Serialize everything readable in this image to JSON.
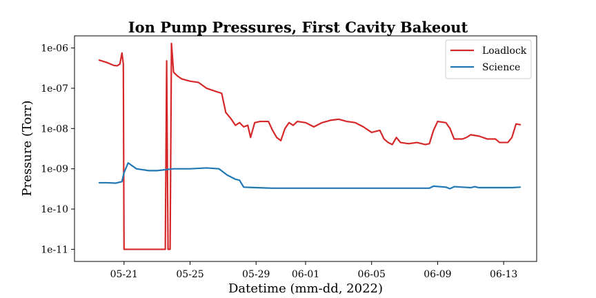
{
  "chart_data": {
    "type": "line",
    "title": "Ion Pump Pressures, First Cavity Bakeout",
    "xlabel": "Datetime (mm-dd, 2022)",
    "ylabel": "Pressure (Torr)",
    "x_scale": "date",
    "y_scale": "log",
    "xlim": [
      "2022-05-18",
      "2022-06-15"
    ],
    "ylim": [
      5e-12,
      2e-06
    ],
    "x_ticks": [
      {
        "date": "2022-05-21",
        "label": "05-21"
      },
      {
        "date": "2022-05-25",
        "label": "05-25"
      },
      {
        "date": "2022-05-29",
        "label": "05-29"
      },
      {
        "date": "2022-06-01",
        "label": "06-01"
      },
      {
        "date": "2022-06-05",
        "label": "06-05"
      },
      {
        "date": "2022-06-09",
        "label": "06-09"
      },
      {
        "date": "2022-06-13",
        "label": "06-13"
      }
    ],
    "y_ticks": [
      {
        "value": 1e-11,
        "label": "1e-11"
      },
      {
        "value": 1e-10,
        "label": "1e-10"
      },
      {
        "value": 1e-09,
        "label": "1e-09"
      },
      {
        "value": 1e-08,
        "label": "1e-08"
      },
      {
        "value": 1e-07,
        "label": "1e-07"
      },
      {
        "value": 1e-06,
        "label": "1e-06"
      }
    ],
    "grid": false,
    "legend_position": "top-right",
    "series": [
      {
        "name": "Loadlock",
        "color": "#d62728",
        "points": [
          [
            "2022-05-19 12:00",
            5e-07
          ],
          [
            "2022-05-20 00:00",
            4.3e-07
          ],
          [
            "2022-05-20 09:00",
            3.7e-07
          ],
          [
            "2022-05-20 14:00",
            3.6e-07
          ],
          [
            "2022-05-20 18:00",
            4e-07
          ],
          [
            "2022-05-20 21:00",
            7.5e-07
          ],
          [
            "2022-05-20 23:00",
            4e-07
          ],
          [
            "2022-05-21 00:00",
            1e-11
          ],
          [
            "2022-05-23 12:00",
            1e-11
          ],
          [
            "2022-05-23 14:00",
            4.8e-07
          ],
          [
            "2022-05-23 16:00",
            1e-11
          ],
          [
            "2022-05-23 19:00",
            1e-11
          ],
          [
            "2022-05-23 21:00",
            1.3e-06
          ],
          [
            "2022-05-24 00:00",
            2.5e-07
          ],
          [
            "2022-05-24 06:00",
            2e-07
          ],
          [
            "2022-05-24 12:00",
            1.7e-07
          ],
          [
            "2022-05-25 00:00",
            1.5e-07
          ],
          [
            "2022-05-25 12:00",
            1.4e-07
          ],
          [
            "2022-05-26 00:00",
            1e-07
          ],
          [
            "2022-05-26 12:00",
            8.5e-08
          ],
          [
            "2022-05-26 22:00",
            7.5e-08
          ],
          [
            "2022-05-27 04:00",
            2.5e-08
          ],
          [
            "2022-05-27 12:00",
            1.7e-08
          ],
          [
            "2022-05-27 18:00",
            1.2e-08
          ],
          [
            "2022-05-28 00:00",
            1.4e-08
          ],
          [
            "2022-05-28 06:00",
            1.1e-08
          ],
          [
            "2022-05-28 12:00",
            1.2e-08
          ],
          [
            "2022-05-28 16:00",
            6e-09
          ],
          [
            "2022-05-28 22:00",
            1.4e-08
          ],
          [
            "2022-05-29 06:00",
            1.5e-08
          ],
          [
            "2022-05-29 18:00",
            1.5e-08
          ],
          [
            "2022-05-30 00:00",
            9e-09
          ],
          [
            "2022-05-30 06:00",
            6e-09
          ],
          [
            "2022-05-30 12:00",
            5e-09
          ],
          [
            "2022-05-30 18:00",
            1e-08
          ],
          [
            "2022-05-31 00:00",
            1.4e-08
          ],
          [
            "2022-05-31 06:00",
            1.2e-08
          ],
          [
            "2022-05-31 12:00",
            1.5e-08
          ],
          [
            "2022-06-01 00:00",
            1.4e-08
          ],
          [
            "2022-06-01 12:00",
            1.1e-08
          ],
          [
            "2022-06-02 00:00",
            1.4e-08
          ],
          [
            "2022-06-02 12:00",
            1.6e-08
          ],
          [
            "2022-06-03 00:00",
            1.7e-08
          ],
          [
            "2022-06-03 12:00",
            1.5e-08
          ],
          [
            "2022-06-04 00:00",
            1.4e-08
          ],
          [
            "2022-06-04 12:00",
            1.1e-08
          ],
          [
            "2022-06-05 00:00",
            8e-09
          ],
          [
            "2022-06-05 12:00",
            9e-09
          ],
          [
            "2022-06-05 18:00",
            5.5e-09
          ],
          [
            "2022-06-06 00:00",
            4.5e-09
          ],
          [
            "2022-06-06 06:00",
            4e-09
          ],
          [
            "2022-06-06 12:00",
            6e-09
          ],
          [
            "2022-06-06 18:00",
            4.5e-09
          ],
          [
            "2022-06-07 06:00",
            4.2e-09
          ],
          [
            "2022-06-07 18:00",
            4.5e-09
          ],
          [
            "2022-06-08 06:00",
            4e-09
          ],
          [
            "2022-06-08 12:00",
            4.2e-09
          ],
          [
            "2022-06-08 18:00",
            9e-09
          ],
          [
            "2022-06-09 00:00",
            1.5e-08
          ],
          [
            "2022-06-09 12:00",
            1.4e-08
          ],
          [
            "2022-06-09 18:00",
            1e-08
          ],
          [
            "2022-06-10 00:00",
            5.5e-09
          ],
          [
            "2022-06-10 12:00",
            5.5e-09
          ],
          [
            "2022-06-10 18:00",
            6e-09
          ],
          [
            "2022-06-11 00:00",
            7e-09
          ],
          [
            "2022-06-11 12:00",
            6.5e-09
          ],
          [
            "2022-06-12 00:00",
            5.5e-09
          ],
          [
            "2022-06-12 12:00",
            5.5e-09
          ],
          [
            "2022-06-12 18:00",
            4.5e-09
          ],
          [
            "2022-06-13 06:00",
            4.5e-09
          ],
          [
            "2022-06-13 12:00",
            6e-09
          ],
          [
            "2022-06-13 18:00",
            1.3e-08
          ],
          [
            "2022-06-14 00:00",
            1.25e-08
          ]
        ]
      },
      {
        "name": "Science",
        "color": "#1f77b4",
        "points": [
          [
            "2022-05-19 12:00",
            4.5e-10
          ],
          [
            "2022-05-20 00:00",
            4.5e-10
          ],
          [
            "2022-05-20 12:00",
            4.4e-10
          ],
          [
            "2022-05-20 21:00",
            4.8e-10
          ],
          [
            "2022-05-21 00:00",
            8e-10
          ],
          [
            "2022-05-21 06:00",
            1.4e-09
          ],
          [
            "2022-05-21 18:00",
            1e-09
          ],
          [
            "2022-05-22 12:00",
            9e-10
          ],
          [
            "2022-05-23 00:00",
            9e-10
          ],
          [
            "2022-05-23 12:00",
            9.5e-10
          ],
          [
            "2022-05-24 00:00",
            1e-09
          ],
          [
            "2022-05-25 00:00",
            1e-09
          ],
          [
            "2022-05-26 00:00",
            1.05e-09
          ],
          [
            "2022-05-26 18:00",
            1e-09
          ],
          [
            "2022-05-27 06:00",
            7e-10
          ],
          [
            "2022-05-27 18:00",
            5.5e-10
          ],
          [
            "2022-05-28 00:00",
            5.2e-10
          ],
          [
            "2022-05-28 06:00",
            3.5e-10
          ],
          [
            "2022-05-29 00:00",
            3.4e-10
          ],
          [
            "2022-05-30 00:00",
            3.3e-10
          ],
          [
            "2022-06-01 00:00",
            3.3e-10
          ],
          [
            "2022-06-04 00:00",
            3.3e-10
          ],
          [
            "2022-06-07 00:00",
            3.3e-10
          ],
          [
            "2022-06-08 12:00",
            3.3e-10
          ],
          [
            "2022-06-08 18:00",
            3.7e-10
          ],
          [
            "2022-06-09 12:00",
            3.5e-10
          ],
          [
            "2022-06-09 18:00",
            3.2e-10
          ],
          [
            "2022-06-10 00:00",
            3.6e-10
          ],
          [
            "2022-06-10 12:00",
            3.5e-10
          ],
          [
            "2022-06-11 00:00",
            3.4e-10
          ],
          [
            "2022-06-11 06:00",
            3.6e-10
          ],
          [
            "2022-06-11 12:00",
            3.4e-10
          ],
          [
            "2022-06-12 12:00",
            3.4e-10
          ],
          [
            "2022-06-13 12:00",
            3.4e-10
          ],
          [
            "2022-06-14 00:00",
            3.5e-10
          ]
        ]
      }
    ]
  }
}
